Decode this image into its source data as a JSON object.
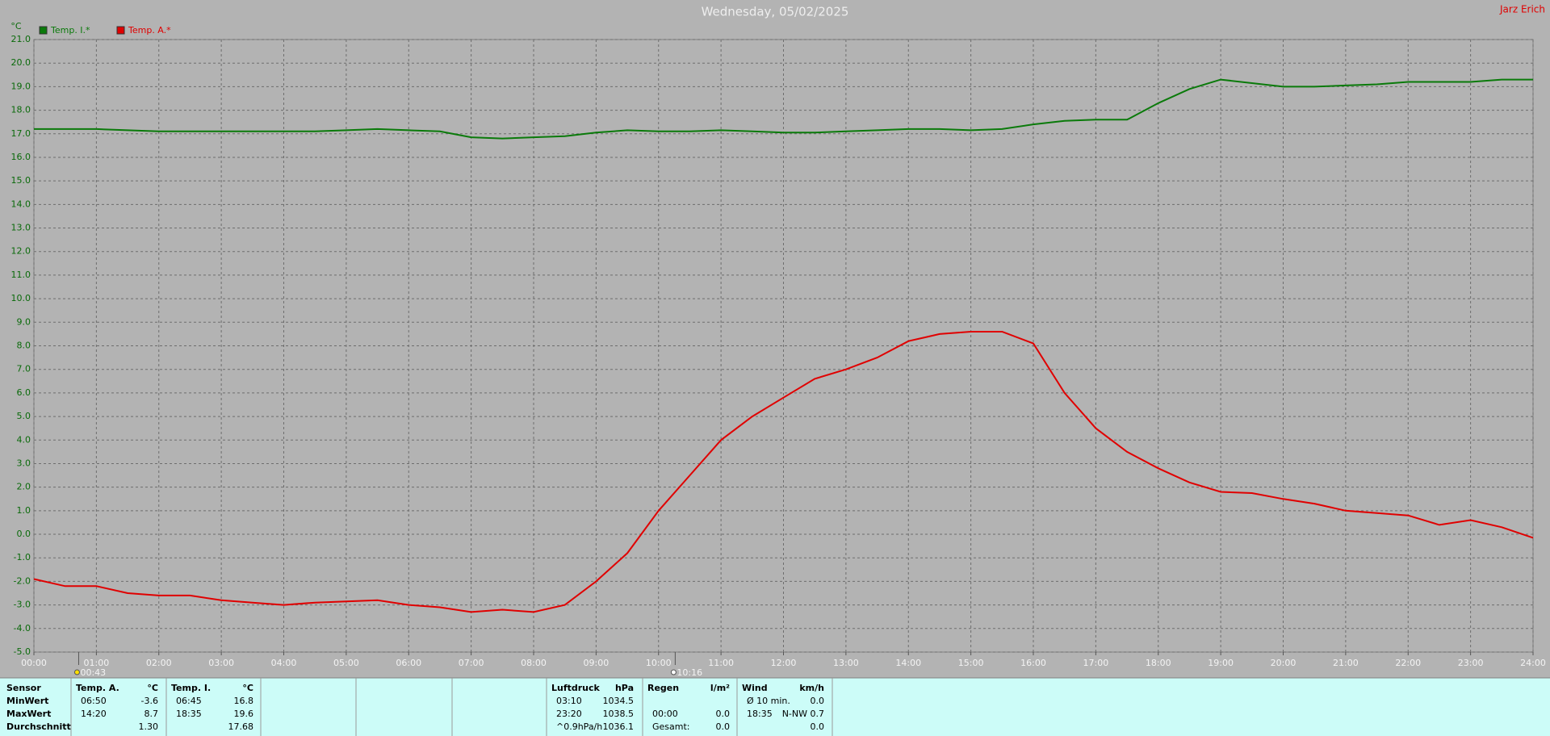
{
  "chart_data": {
    "type": "line",
    "title": "Wednesday, 05/02/2025",
    "author": "Jarz Erich",
    "y_label": "°C",
    "grid": true,
    "legend": "top-left",
    "xlim": [
      0,
      24
    ],
    "ylim": [
      -5,
      21
    ],
    "xticks": [
      {
        "value": 0,
        "label": "00:00"
      },
      {
        "value": 1,
        "label": "01:00"
      },
      {
        "value": 2,
        "label": "02:00"
      },
      {
        "value": 3,
        "label": "03:00"
      },
      {
        "value": 4,
        "label": "04:00"
      },
      {
        "value": 5,
        "label": "05:00"
      },
      {
        "value": 6,
        "label": "06:00"
      },
      {
        "value": 7,
        "label": "07:00"
      },
      {
        "value": 8,
        "label": "08:00"
      },
      {
        "value": 9,
        "label": "09:00"
      },
      {
        "value": 10,
        "label": "10:00"
      },
      {
        "value": 11,
        "label": "11:00"
      },
      {
        "value": 12,
        "label": "12:00"
      },
      {
        "value": 13,
        "label": "13:00"
      },
      {
        "value": 14,
        "label": "14:00"
      },
      {
        "value": 15,
        "label": "15:00"
      },
      {
        "value": 16,
        "label": "16:00"
      },
      {
        "value": 17,
        "label": "17:00"
      },
      {
        "value": 18,
        "label": "18:00"
      },
      {
        "value": 19,
        "label": "19:00"
      },
      {
        "value": 20,
        "label": "20:00"
      },
      {
        "value": 21,
        "label": "21:00"
      },
      {
        "value": 22,
        "label": "22:00"
      },
      {
        "value": 23,
        "label": "23:00"
      },
      {
        "value": 24,
        "label": "24:00"
      }
    ],
    "yticks": [
      {
        "value": -5,
        "label": "-5.0"
      },
      {
        "value": -4,
        "label": "-4.0"
      },
      {
        "value": -3,
        "label": "-3.0"
      },
      {
        "value": -2,
        "label": "-2.0"
      },
      {
        "value": -1,
        "label": "-1.0"
      },
      {
        "value": 0,
        "label": "0.0"
      },
      {
        "value": 1,
        "label": "1.0"
      },
      {
        "value": 2,
        "label": "2.0"
      },
      {
        "value": 3,
        "label": "3.0"
      },
      {
        "value": 4,
        "label": "4.0"
      },
      {
        "value": 5,
        "label": "5.0"
      },
      {
        "value": 6,
        "label": "6.0"
      },
      {
        "value": 7,
        "label": "7.0"
      },
      {
        "value": 8,
        "label": "8.0"
      },
      {
        "value": 9,
        "label": "9.0"
      },
      {
        "value": 10,
        "label": "10.0"
      },
      {
        "value": 11,
        "label": "11.0"
      },
      {
        "value": 12,
        "label": "12.0"
      },
      {
        "value": 13,
        "label": "13.0"
      },
      {
        "value": 14,
        "label": "14.0"
      },
      {
        "value": 15,
        "label": "15.0"
      },
      {
        "value": 16,
        "label": "16.0"
      },
      {
        "value": 17,
        "label": "17.0"
      },
      {
        "value": 18,
        "label": "18.0"
      },
      {
        "value": 19,
        "label": "19.0"
      },
      {
        "value": 20,
        "label": "20.0"
      },
      {
        "value": 21,
        "label": "21.0"
      }
    ],
    "x": [
      0,
      0.5,
      1,
      1.5,
      2,
      2.5,
      3,
      3.5,
      4,
      4.5,
      5,
      5.5,
      6,
      6.5,
      7,
      7.5,
      8,
      8.5,
      9,
      9.5,
      10,
      10.5,
      11,
      11.5,
      12,
      12.5,
      13,
      13.5,
      14,
      14.5,
      15,
      15.5,
      16,
      16.5,
      17,
      17.5,
      18,
      18.5,
      19,
      19.5,
      20,
      20.5,
      21,
      21.5,
      22,
      22.5,
      23,
      23.5,
      24
    ],
    "series": [
      {
        "name": "Temp. I.*",
        "color": "#0a7a0a",
        "values": [
          17.2,
          17.2,
          17.2,
          17.15,
          17.1,
          17.1,
          17.1,
          17.1,
          17.1,
          17.1,
          17.15,
          17.2,
          17.15,
          17.1,
          16.85,
          16.8,
          16.85,
          16.9,
          17.05,
          17.15,
          17.1,
          17.1,
          17.15,
          17.1,
          17.05,
          17.05,
          17.1,
          17.15,
          17.2,
          17.2,
          17.15,
          17.2,
          17.4,
          17.55,
          17.6,
          17.6,
          18.3,
          18.9,
          19.3,
          19.15,
          19.0,
          19.0,
          19.05,
          19.1,
          19.2,
          19.2,
          19.2,
          19.3,
          19.3
        ]
      },
      {
        "name": "Temp. A.*",
        "color": "#e00000",
        "values": [
          -1.9,
          -2.2,
          -2.2,
          -2.5,
          -2.6,
          -2.6,
          -2.8,
          -2.9,
          -3.0,
          -2.9,
          -2.85,
          -2.8,
          -3.0,
          -3.1,
          -3.3,
          -3.2,
          -3.3,
          -3.0,
          -2.0,
          -0.8,
          1.0,
          2.5,
          4.0,
          5.0,
          5.8,
          6.6,
          7.0,
          7.5,
          8.2,
          8.5,
          8.6,
          8.6,
          8.1,
          6.0,
          4.5,
          3.5,
          2.8,
          2.2,
          1.8,
          1.75,
          1.5,
          1.3,
          1.0,
          0.9,
          0.8,
          0.4,
          0.6,
          0.3,
          -0.15
        ]
      }
    ],
    "markers": [
      {
        "x": 0.7167,
        "label": "00:43"
      },
      {
        "x": 10.2667,
        "label": "10:16"
      }
    ]
  },
  "stats_panel": {
    "row_labels": [
      "Sensor",
      "MinWert",
      "MaxWert",
      "Durchschnitt"
    ],
    "columns": [
      {
        "header": "Temp. A.",
        "unit": "°C",
        "rows": [
          {
            "time": "06:50",
            "value": "-3.6"
          },
          {
            "time": "14:20",
            "value": "8.7"
          },
          {
            "value": "1.30"
          }
        ]
      },
      {
        "header": "Temp. I.",
        "unit": "°C",
        "rows": [
          {
            "time": "06:45",
            "value": "16.8"
          },
          {
            "time": "18:35",
            "value": "19.6"
          },
          {
            "value": "17.68"
          }
        ]
      },
      {
        "header": "Luftdruck",
        "unit": "hPa",
        "rows": [
          {
            "time": "03:10",
            "value": "1034.5"
          },
          {
            "time": "23:20",
            "value": "1038.5"
          },
          {
            "time": "^0.9hPa/h",
            "value": "1036.1"
          }
        ]
      },
      {
        "header": "Regen",
        "unit": "l/m²",
        "rows": [
          {},
          {
            "time": "00:00",
            "value": "0.0"
          },
          {
            "time": "Gesamt:",
            "value": "0.0"
          }
        ]
      },
      {
        "header": "Wind",
        "unit": "km/h",
        "rows": [
          {
            "time": "Ø 10 min.",
            "value": "0.0"
          },
          {
            "time": "18:35",
            "value": "N-NW 0.7"
          },
          {
            "value": "0.0"
          }
        ]
      }
    ]
  }
}
